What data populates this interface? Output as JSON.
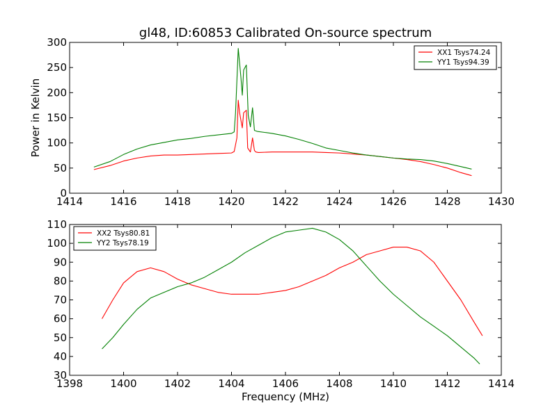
{
  "chart_data": [
    {
      "type": "line",
      "title": "gl48, ID:60853 Calibrated On-source spectrum",
      "xlabel": "",
      "ylabel": "Power in Kelvin",
      "xlim": [
        1414,
        1430
      ],
      "ylim": [
        0,
        300
      ],
      "xticks": [
        1414,
        1416,
        1418,
        1420,
        1422,
        1424,
        1426,
        1428,
        1430
      ],
      "yticks": [
        0,
        50,
        100,
        150,
        200,
        250,
        300
      ],
      "legend_position": "top-right",
      "grid": false,
      "series": [
        {
          "name": "XX1 Tsys74.24",
          "color": "#ff0000",
          "x": [
            1414.9,
            1415.5,
            1416.0,
            1416.5,
            1417.0,
            1417.5,
            1418.0,
            1418.5,
            1419.0,
            1419.5,
            1420.0,
            1420.1,
            1420.2,
            1420.25,
            1420.3,
            1420.4,
            1420.45,
            1420.55,
            1420.6,
            1420.7,
            1420.78,
            1420.85,
            1420.9,
            1421.0,
            1421.5,
            1422.0,
            1422.5,
            1423.0,
            1423.5,
            1424.0,
            1424.5,
            1425.0,
            1425.5,
            1426.0,
            1426.5,
            1427.0,
            1427.5,
            1428.0,
            1428.5,
            1428.9
          ],
          "y": [
            47,
            55,
            64,
            70,
            74,
            76,
            76,
            77,
            78,
            79,
            80,
            83,
            110,
            185,
            160,
            130,
            160,
            165,
            90,
            82,
            110,
            85,
            82,
            81,
            82,
            82,
            82,
            82,
            81,
            80,
            78,
            76,
            73,
            70,
            67,
            63,
            57,
            50,
            41,
            35
          ]
        },
        {
          "name": "YY1 Tsys94.39",
          "color": "#008000",
          "x": [
            1414.9,
            1415.5,
            1416.0,
            1416.5,
            1417.0,
            1417.5,
            1418.0,
            1418.5,
            1419.0,
            1419.5,
            1420.0,
            1420.1,
            1420.15,
            1420.25,
            1420.35,
            1420.4,
            1420.45,
            1420.55,
            1420.62,
            1420.7,
            1420.78,
            1420.85,
            1420.95,
            1421.5,
            1422.0,
            1422.5,
            1423.0,
            1423.5,
            1424.0,
            1424.5,
            1425.0,
            1425.5,
            1426.0,
            1426.5,
            1427.0,
            1427.5,
            1428.0,
            1428.5,
            1428.9
          ],
          "y": [
            52,
            63,
            77,
            88,
            96,
            101,
            106,
            109,
            113,
            116,
            119,
            122,
            160,
            288,
            230,
            195,
            245,
            255,
            155,
            132,
            170,
            125,
            123,
            119,
            114,
            107,
            99,
            90,
            85,
            80,
            76,
            73,
            70,
            68,
            67,
            64,
            59,
            53,
            48
          ]
        }
      ]
    },
    {
      "type": "line",
      "title": "",
      "xlabel": "Frequency (MHz)",
      "ylabel": "",
      "xlim": [
        1398,
        1414
      ],
      "ylim": [
        30,
        110
      ],
      "xticks": [
        1398,
        1400,
        1402,
        1404,
        1406,
        1408,
        1410,
        1412,
        1414
      ],
      "yticks": [
        30,
        40,
        50,
        60,
        70,
        80,
        90,
        100,
        110
      ],
      "legend_position": "top-left",
      "grid": false,
      "series": [
        {
          "name": "XX2 Tsys80.81",
          "color": "#ff0000",
          "x": [
            1399.2,
            1399.6,
            1400.0,
            1400.5,
            1401.0,
            1401.5,
            1402.0,
            1402.5,
            1403.0,
            1403.5,
            1404.0,
            1404.5,
            1405.0,
            1405.5,
            1406.0,
            1406.5,
            1407.0,
            1407.5,
            1408.0,
            1408.5,
            1409.0,
            1409.5,
            1410.0,
            1410.5,
            1411.0,
            1411.5,
            1412.0,
            1412.5,
            1413.0,
            1413.3
          ],
          "y": [
            60,
            70,
            79,
            85,
            87,
            85,
            81,
            78,
            76,
            74,
            73,
            73,
            73,
            74,
            75,
            77,
            80,
            83,
            87,
            90,
            94,
            96,
            98,
            98,
            96,
            90,
            80,
            70,
            58,
            51
          ]
        },
        {
          "name": "YY2 Tsys78.19",
          "color": "#008000",
          "x": [
            1399.2,
            1399.6,
            1400.0,
            1400.5,
            1401.0,
            1401.5,
            1402.0,
            1402.5,
            1403.0,
            1403.5,
            1404.0,
            1404.5,
            1405.0,
            1405.5,
            1406.0,
            1406.5,
            1407.0,
            1407.5,
            1408.0,
            1408.5,
            1409.0,
            1409.5,
            1410.0,
            1410.5,
            1411.0,
            1411.5,
            1412.0,
            1412.5,
            1413.0,
            1413.2
          ],
          "y": [
            44,
            50,
            57,
            65,
            71,
            74,
            77,
            79,
            82,
            86,
            90,
            95,
            99,
            103,
            106,
            107,
            108,
            106,
            102,
            96,
            88,
            80,
            73,
            67,
            61,
            56,
            51,
            45,
            39,
            36
          ]
        }
      ]
    }
  ]
}
